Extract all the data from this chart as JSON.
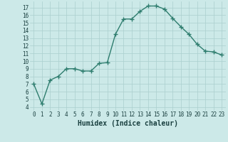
{
  "xlabel": "Humidex (Indice chaleur)",
  "x": [
    0,
    1,
    2,
    3,
    4,
    5,
    6,
    7,
    8,
    9,
    10,
    11,
    12,
    13,
    14,
    15,
    16,
    17,
    18,
    19,
    20,
    21,
    22,
    23
  ],
  "y": [
    7.0,
    4.4,
    7.5,
    8.0,
    9.0,
    9.0,
    8.7,
    8.7,
    9.7,
    9.8,
    13.5,
    15.5,
    15.5,
    16.5,
    17.2,
    17.2,
    16.8,
    15.6,
    14.5,
    13.5,
    12.2,
    11.3,
    11.2,
    10.8
  ],
  "line_color": "#2e7d6e",
  "marker": "+",
  "marker_size": 4,
  "marker_lw": 1.0,
  "bg_color": "#cce9e8",
  "grid_color": "#aacfce",
  "tick_label_color": "#1a4040",
  "xlabel_color": "#1a4040",
  "xlim": [
    -0.5,
    23.5
  ],
  "ylim": [
    3.5,
    17.8
  ],
  "yticks": [
    4,
    5,
    6,
    7,
    8,
    9,
    10,
    11,
    12,
    13,
    14,
    15,
    16,
    17
  ],
  "xticks": [
    0,
    1,
    2,
    3,
    4,
    5,
    6,
    7,
    8,
    9,
    10,
    11,
    12,
    13,
    14,
    15,
    16,
    17,
    18,
    19,
    20,
    21,
    22,
    23
  ],
  "fontsize_ticks": 5.5,
  "fontsize_xlabel": 7.0,
  "linewidth": 1.0
}
